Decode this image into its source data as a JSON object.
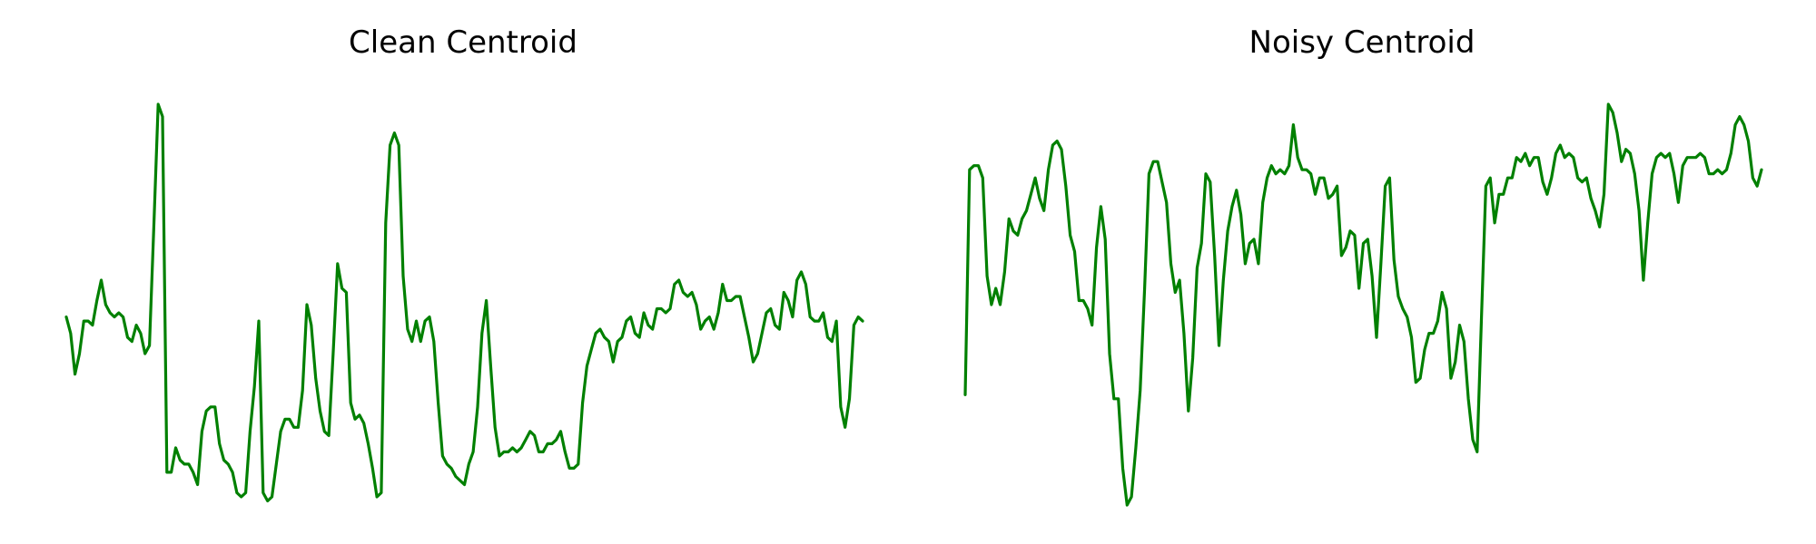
{
  "colors": {
    "line": "#008000",
    "background": "#ffffff"
  },
  "chart_data": [
    {
      "type": "line",
      "title": "Clean Centroid",
      "xlabel": "",
      "ylabel": "",
      "axes_visible": false,
      "grid": false,
      "ylim": [
        0,
        1
      ],
      "series": [
        {
          "values": [
            0.44,
            0.4,
            0.3,
            0.35,
            0.43,
            0.43,
            0.42,
            0.48,
            0.53,
            0.47,
            0.45,
            0.44,
            0.45,
            0.44,
            0.39,
            0.38,
            0.42,
            0.4,
            0.35,
            0.37,
            0.66,
            0.96,
            0.93,
            0.06,
            0.06,
            0.12,
            0.09,
            0.08,
            0.08,
            0.06,
            0.03,
            0.16,
            0.21,
            0.22,
            0.22,
            0.13,
            0.09,
            0.08,
            0.06,
            0.01,
            0.0,
            0.01,
            0.16,
            0.27,
            0.43,
            0.01,
            -0.01,
            0.0,
            0.08,
            0.16,
            0.19,
            0.19,
            0.17,
            0.17,
            0.26,
            0.47,
            0.42,
            0.29,
            0.21,
            0.16,
            0.15,
            0.35,
            0.57,
            0.51,
            0.5,
            0.23,
            0.19,
            0.2,
            0.18,
            0.13,
            0.07,
            0.0,
            0.01,
            0.67,
            0.86,
            0.89,
            0.86,
            0.54,
            0.41,
            0.38,
            0.43,
            0.38,
            0.43,
            0.44,
            0.38,
            0.23,
            0.1,
            0.08,
            0.07,
            0.05,
            0.04,
            0.03,
            0.08,
            0.11,
            0.22,
            0.4,
            0.48,
            0.32,
            0.17,
            0.1,
            0.11,
            0.11,
            0.12,
            0.11,
            0.12,
            0.14,
            0.16,
            0.15,
            0.11,
            0.11,
            0.13,
            0.13,
            0.14,
            0.16,
            0.11,
            0.07,
            0.07,
            0.08,
            0.23,
            0.32,
            0.36,
            0.4,
            0.41,
            0.39,
            0.38,
            0.33,
            0.38,
            0.39,
            0.43,
            0.44,
            0.4,
            0.39,
            0.45,
            0.42,
            0.41,
            0.46,
            0.46,
            0.45,
            0.46,
            0.52,
            0.53,
            0.5,
            0.49,
            0.5,
            0.47,
            0.41,
            0.43,
            0.44,
            0.41,
            0.45,
            0.52,
            0.48,
            0.48,
            0.49,
            0.49,
            0.44,
            0.39,
            0.33,
            0.35,
            0.4,
            0.45,
            0.46,
            0.42,
            0.41,
            0.5,
            0.48,
            0.44,
            0.53,
            0.55,
            0.52,
            0.44,
            0.43,
            0.43,
            0.45,
            0.39,
            0.38,
            0.43,
            0.22,
            0.17,
            0.24,
            0.42,
            0.44,
            0.43
          ]
        }
      ]
    },
    {
      "type": "line",
      "title": "Noisy Centroid",
      "xlabel": "",
      "ylabel": "",
      "axes_visible": false,
      "grid": false,
      "ylim": [
        0,
        1
      ],
      "series": [
        {
          "values": [
            0.25,
            0.8,
            0.81,
            0.81,
            0.78,
            0.54,
            0.47,
            0.51,
            0.47,
            0.55,
            0.68,
            0.65,
            0.64,
            0.68,
            0.7,
            0.74,
            0.78,
            0.73,
            0.7,
            0.8,
            0.86,
            0.87,
            0.85,
            0.76,
            0.64,
            0.6,
            0.48,
            0.48,
            0.46,
            0.42,
            0.61,
            0.71,
            0.63,
            0.35,
            0.24,
            0.24,
            0.07,
            -0.02,
            0.0,
            0.12,
            0.26,
            0.51,
            0.79,
            0.82,
            0.82,
            0.77,
            0.72,
            0.57,
            0.5,
            0.53,
            0.4,
            0.21,
            0.34,
            0.56,
            0.62,
            0.79,
            0.77,
            0.59,
            0.37,
            0.53,
            0.65,
            0.71,
            0.75,
            0.69,
            0.57,
            0.62,
            0.63,
            0.57,
            0.72,
            0.78,
            0.81,
            0.79,
            0.8,
            0.79,
            0.81,
            0.91,
            0.83,
            0.8,
            0.8,
            0.79,
            0.74,
            0.78,
            0.78,
            0.73,
            0.74,
            0.76,
            0.59,
            0.61,
            0.65,
            0.64,
            0.51,
            0.62,
            0.63,
            0.54,
            0.39,
            0.57,
            0.76,
            0.78,
            0.58,
            0.49,
            0.46,
            0.44,
            0.39,
            0.28,
            0.29,
            0.36,
            0.4,
            0.4,
            0.43,
            0.5,
            0.46,
            0.29,
            0.33,
            0.42,
            0.38,
            0.24,
            0.14,
            0.11,
            0.44,
            0.76,
            0.78,
            0.67,
            0.74,
            0.74,
            0.78,
            0.78,
            0.83,
            0.82,
            0.84,
            0.81,
            0.83,
            0.83,
            0.77,
            0.74,
            0.78,
            0.84,
            0.86,
            0.83,
            0.84,
            0.83,
            0.78,
            0.77,
            0.78,
            0.73,
            0.7,
            0.66,
            0.74,
            0.96,
            0.94,
            0.89,
            0.82,
            0.85,
            0.84,
            0.79,
            0.7,
            0.53,
            0.67,
            0.79,
            0.83,
            0.84,
            0.83,
            0.84,
            0.79,
            0.72,
            0.81,
            0.83,
            0.83,
            0.83,
            0.84,
            0.83,
            0.79,
            0.79,
            0.8,
            0.79,
            0.8,
            0.84,
            0.91,
            0.93,
            0.91,
            0.87,
            0.78,
            0.76,
            0.8
          ]
        }
      ]
    }
  ]
}
